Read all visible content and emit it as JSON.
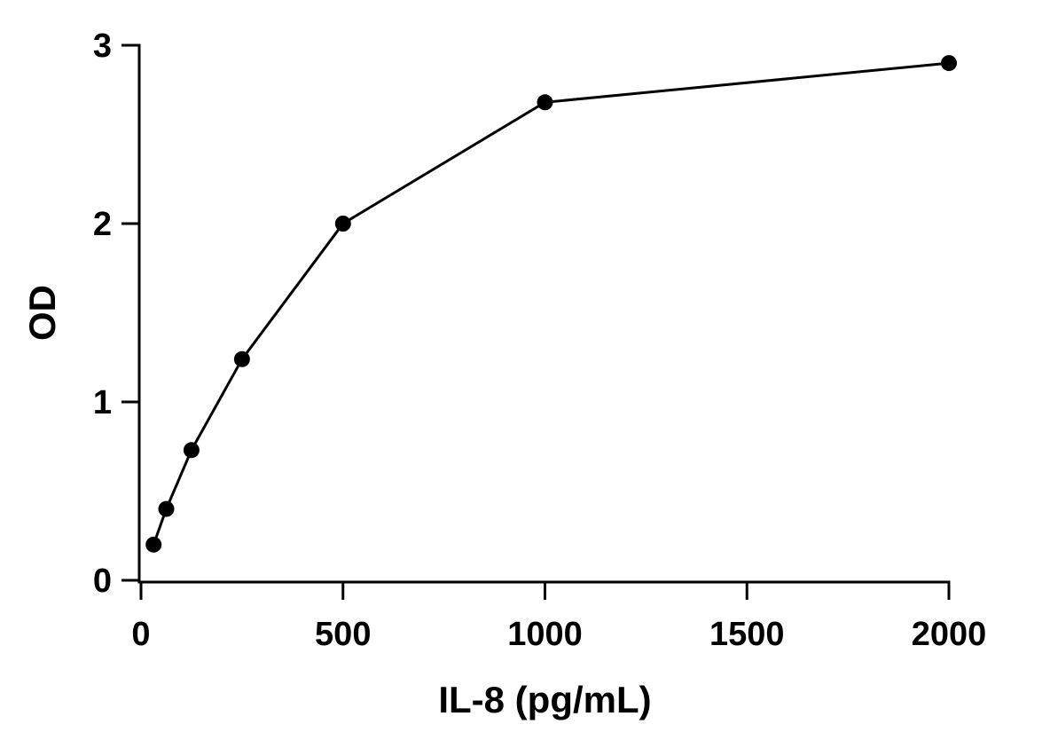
{
  "chart_data": {
    "type": "line",
    "title": "",
    "xlabel": "IL-8 (pg/mL)",
    "ylabel": "OD",
    "xlim": [
      0,
      2000
    ],
    "ylim": [
      0,
      3
    ],
    "xticks": [
      0,
      500,
      1000,
      1500,
      2000
    ],
    "yticks": [
      0,
      1,
      2,
      3
    ],
    "xtick_labels": [
      "0",
      "500",
      "1000",
      "1500",
      "2000"
    ],
    "ytick_labels": [
      "0",
      "1",
      "2",
      "3"
    ],
    "grid": false,
    "legend": "none",
    "series": [
      {
        "x": [
          31.25,
          62.5,
          125,
          250,
          500,
          1000,
          2000
        ],
        "y": [
          0.2,
          0.4,
          0.73,
          1.24,
          2.0,
          2.68,
          2.9
        ],
        "marker": "circle",
        "color": "#000000"
      }
    ]
  }
}
